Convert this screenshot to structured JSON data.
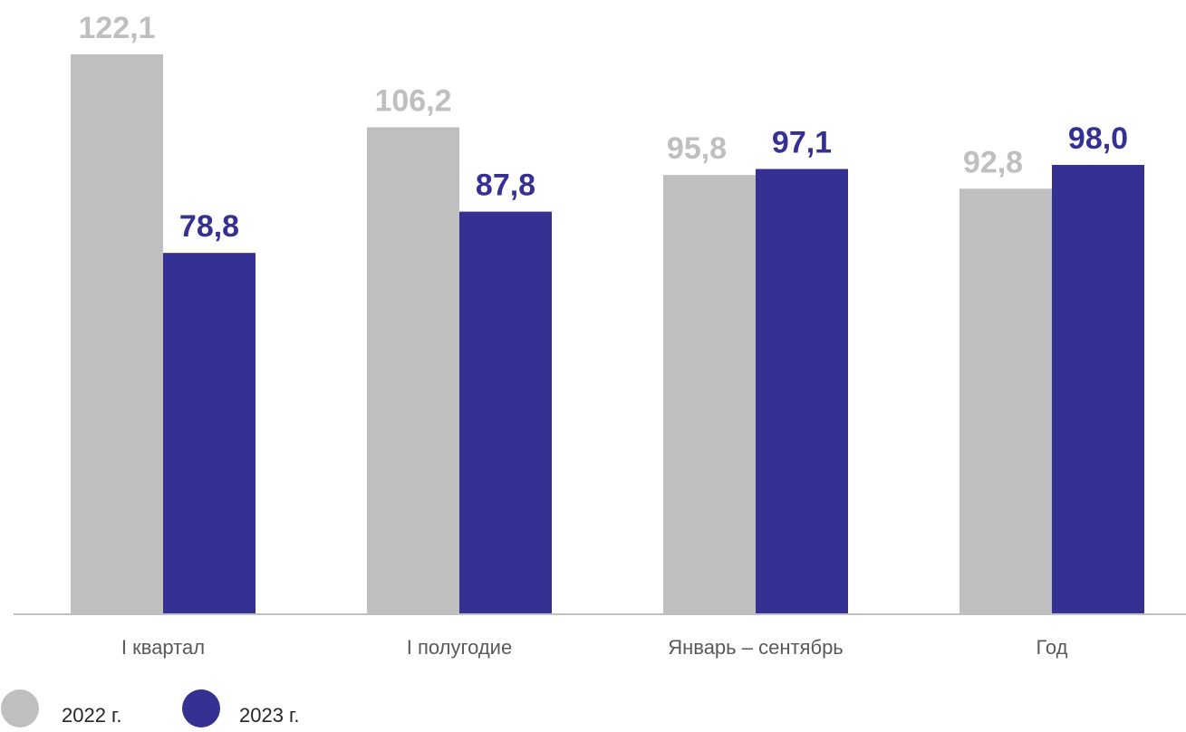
{
  "chart_data": {
    "type": "bar",
    "categories": [
      "I квартал",
      "I полугодие",
      "Январь – сентябрь",
      "Год"
    ],
    "series": [
      {
        "name": "2022 г.",
        "color": "#bfbfbf",
        "values": [
          122.1,
          106.2,
          95.8,
          92.8
        ],
        "labels": [
          "122,1",
          "106,2",
          "95,8",
          "92,8"
        ]
      },
      {
        "name": "2023 г.",
        "color": "#353193",
        "values": [
          78.8,
          87.8,
          97.1,
          98.0
        ],
        "labels": [
          "78,8",
          "87,8",
          "97,1",
          "98,0"
        ]
      }
    ],
    "ylim": [
      0,
      122.1
    ],
    "grid": false,
    "legend_position": "bottom-left"
  },
  "colors": {
    "axis": "#bfbfbf"
  }
}
